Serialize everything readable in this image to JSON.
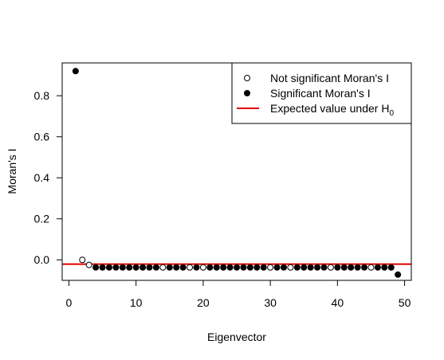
{
  "chart_data": {
    "type": "scatter",
    "title": "",
    "xlabel": "Eigenvector",
    "ylabel": "Moran's I",
    "xlim": [
      -1,
      51
    ],
    "ylim": [
      -0.1,
      0.96
    ],
    "xticks": [
      0,
      10,
      20,
      30,
      40,
      50
    ],
    "yticks": [
      0.0,
      0.2,
      0.4,
      0.6,
      0.8
    ],
    "ytick_labels": [
      "0.0",
      "0.2",
      "0.4",
      "0.6",
      "0.8"
    ],
    "xtick_labels": [
      "0",
      "10",
      "20",
      "30",
      "40",
      "50"
    ],
    "grid": false,
    "legend_position": "top-right",
    "legend": [
      {
        "label": "Not significant Moran's I",
        "marker": "open-circle"
      },
      {
        "label": "Significant Moran's I",
        "marker": "filled-circle"
      },
      {
        "label_main": "Expected value under H",
        "label_sub": "0",
        "marker": "line",
        "color": "#e00000"
      }
    ],
    "expected_value": -0.021,
    "expected_line_color": "#e00000",
    "series": [
      {
        "name": "Not significant Moran's I",
        "marker": "open-circle",
        "x": [
          2,
          3,
          14,
          18,
          20,
          30,
          33,
          39,
          45
        ],
        "y": [
          0.0,
          -0.025,
          -0.037,
          -0.037,
          -0.037,
          -0.037,
          -0.037,
          -0.037,
          -0.037
        ]
      },
      {
        "name": "Significant Moran's I",
        "marker": "filled-circle",
        "x": [
          1,
          4,
          5,
          6,
          7,
          8,
          9,
          10,
          11,
          12,
          13,
          15,
          16,
          17,
          19,
          21,
          22,
          23,
          24,
          25,
          26,
          27,
          28,
          29,
          31,
          32,
          34,
          35,
          36,
          37,
          38,
          40,
          41,
          42,
          43,
          44,
          46,
          47,
          48,
          49
        ],
        "y": [
          0.92,
          -0.037,
          -0.037,
          -0.037,
          -0.037,
          -0.037,
          -0.037,
          -0.037,
          -0.037,
          -0.037,
          -0.037,
          -0.037,
          -0.037,
          -0.037,
          -0.037,
          -0.037,
          -0.037,
          -0.037,
          -0.037,
          -0.037,
          -0.037,
          -0.037,
          -0.037,
          -0.037,
          -0.037,
          -0.037,
          -0.037,
          -0.037,
          -0.037,
          -0.037,
          -0.037,
          -0.037,
          -0.037,
          -0.037,
          -0.037,
          -0.037,
          -0.037,
          -0.037,
          -0.037,
          -0.072
        ]
      }
    ]
  }
}
